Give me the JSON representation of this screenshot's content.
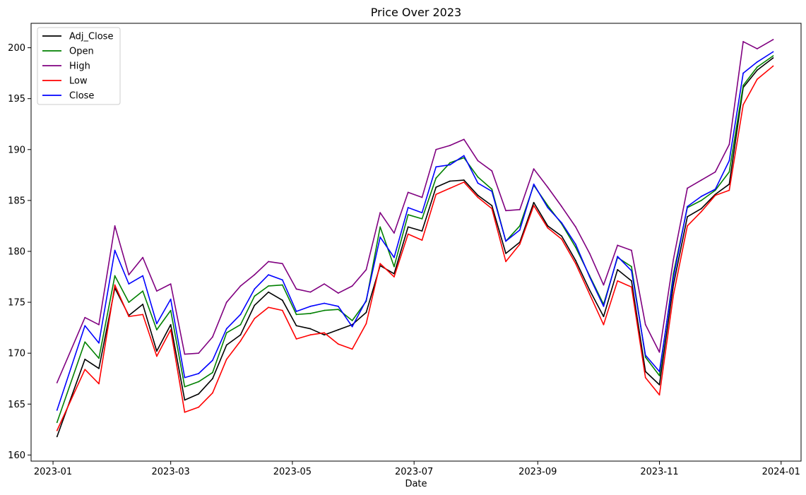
{
  "chart_data": {
    "type": "line",
    "title": "Price Over 2023",
    "xlabel": "Date",
    "ylabel": "",
    "xlim": [
      "2022-12-21",
      "2024-01-11"
    ],
    "ylim": [
      159.4,
      202.4
    ],
    "x_ticks": [
      "2023-01-01",
      "2023-03-01",
      "2023-05-01",
      "2023-07-01",
      "2023-09-01",
      "2023-11-01",
      "2024-01-01"
    ],
    "x_tick_labels": [
      "2023-01",
      "2023-03",
      "2023-05",
      "2023-07",
      "2023-09",
      "2023-11",
      "2024-01"
    ],
    "y_ticks": [
      160,
      165,
      170,
      175,
      180,
      185,
      190,
      195,
      200
    ],
    "y_tick_labels": [
      "160",
      "165",
      "170",
      "175",
      "180",
      "185",
      "190",
      "195",
      "200"
    ],
    "grid": false,
    "legend_position": "upper-left",
    "x": [
      "2023-01-03",
      "2023-01-17",
      "2023-01-24",
      "2023-02-01",
      "2023-02-08",
      "2023-02-15",
      "2023-02-22",
      "2023-03-01",
      "2023-03-08",
      "2023-03-15",
      "2023-03-22",
      "2023-03-29",
      "2023-04-05",
      "2023-04-12",
      "2023-04-19",
      "2023-04-26",
      "2023-05-03",
      "2023-05-10",
      "2023-05-17",
      "2023-05-24",
      "2023-05-31",
      "2023-06-07",
      "2023-06-14",
      "2023-06-21",
      "2023-06-28",
      "2023-07-05",
      "2023-07-12",
      "2023-07-19",
      "2023-07-26",
      "2023-08-02",
      "2023-08-09",
      "2023-08-16",
      "2023-08-23",
      "2023-08-30",
      "2023-09-06",
      "2023-09-13",
      "2023-09-20",
      "2023-09-27",
      "2023-10-04",
      "2023-10-11",
      "2023-10-18",
      "2023-10-25",
      "2023-11-01",
      "2023-11-08",
      "2023-11-15",
      "2023-11-22",
      "2023-11-29",
      "2023-12-06",
      "2023-12-13",
      "2023-12-20",
      "2023-12-28"
    ],
    "series": [
      {
        "name": "Adj_Close",
        "color": "#000000",
        "values": [
          161.8,
          169.4,
          168.5,
          176.4,
          173.7,
          174.8,
          170.2,
          172.8,
          165.4,
          166.0,
          167.5,
          170.8,
          171.8,
          174.7,
          176.0,
          175.2,
          172.7,
          172.4,
          171.8,
          172.3,
          172.8,
          174.0,
          178.6,
          177.8,
          182.4,
          182.0,
          186.3,
          186.9,
          187.0,
          185.5,
          184.5,
          179.8,
          180.9,
          184.8,
          182.5,
          181.5,
          179.1,
          176.2,
          173.6,
          178.2,
          177.1,
          168.2,
          166.9,
          176.7,
          183.4,
          184.2,
          185.6,
          186.6,
          196.1,
          197.8,
          199.0
        ]
      },
      {
        "name": "Open",
        "color": "#008000",
        "values": [
          163.2,
          171.1,
          169.5,
          177.6,
          175.0,
          176.1,
          172.3,
          174.2,
          166.7,
          167.2,
          168.1,
          172.0,
          172.8,
          175.6,
          176.6,
          176.7,
          173.8,
          173.9,
          174.2,
          174.3,
          173.2,
          175.1,
          182.4,
          178.5,
          183.6,
          183.2,
          187.2,
          188.7,
          189.2,
          187.3,
          186.1,
          181.0,
          182.5,
          186.5,
          184.5,
          182.7,
          180.4,
          177.6,
          174.8,
          179.4,
          178.5,
          169.6,
          167.8,
          177.8,
          184.3,
          185.0,
          186.0,
          187.8,
          196.3,
          198.1,
          199.2
        ]
      },
      {
        "name": "High",
        "color": "#800080",
        "values": [
          167.1,
          173.5,
          172.8,
          182.5,
          177.7,
          179.4,
          176.1,
          176.8,
          169.9,
          170.0,
          171.6,
          175.0,
          176.6,
          177.7,
          179.0,
          178.8,
          176.3,
          176.0,
          176.8,
          175.9,
          176.6,
          178.2,
          183.8,
          181.8,
          185.8,
          185.3,
          190.0,
          190.4,
          191.0,
          188.9,
          187.9,
          184.0,
          184.1,
          188.1,
          186.3,
          184.4,
          182.4,
          179.8,
          176.7,
          180.6,
          180.1,
          172.8,
          170.1,
          179.2,
          186.2,
          187.0,
          187.8,
          190.5,
          200.6,
          199.9,
          200.8
        ]
      },
      {
        "name": "Low",
        "color": "#ff0000",
        "values": [
          162.4,
          168.4,
          167.0,
          176.7,
          173.6,
          173.8,
          169.7,
          172.3,
          164.2,
          164.7,
          166.1,
          169.4,
          171.2,
          173.4,
          174.5,
          174.2,
          171.4,
          171.8,
          172.0,
          170.9,
          170.4,
          172.9,
          178.8,
          177.5,
          181.7,
          181.1,
          185.6,
          186.2,
          186.8,
          185.3,
          184.2,
          179.0,
          180.7,
          184.5,
          182.3,
          181.2,
          178.8,
          175.8,
          172.8,
          177.1,
          176.5,
          167.6,
          165.9,
          175.7,
          182.5,
          183.9,
          185.5,
          186.0,
          194.4,
          196.9,
          198.2
        ]
      },
      {
        "name": "Close",
        "color": "#0000ff",
        "values": [
          164.4,
          172.7,
          171.0,
          180.1,
          176.8,
          177.6,
          172.9,
          175.3,
          167.6,
          168.0,
          169.3,
          172.4,
          173.8,
          176.3,
          177.7,
          177.2,
          174.1,
          174.6,
          174.9,
          174.6,
          172.6,
          175.2,
          181.4,
          179.4,
          184.3,
          183.8,
          188.3,
          188.5,
          189.4,
          186.7,
          185.9,
          181.0,
          182.1,
          186.6,
          184.3,
          182.8,
          180.7,
          177.5,
          174.6,
          179.5,
          178.1,
          169.8,
          168.2,
          177.4,
          184.4,
          185.4,
          186.1,
          188.9,
          197.5,
          198.6,
          199.6
        ]
      }
    ]
  }
}
